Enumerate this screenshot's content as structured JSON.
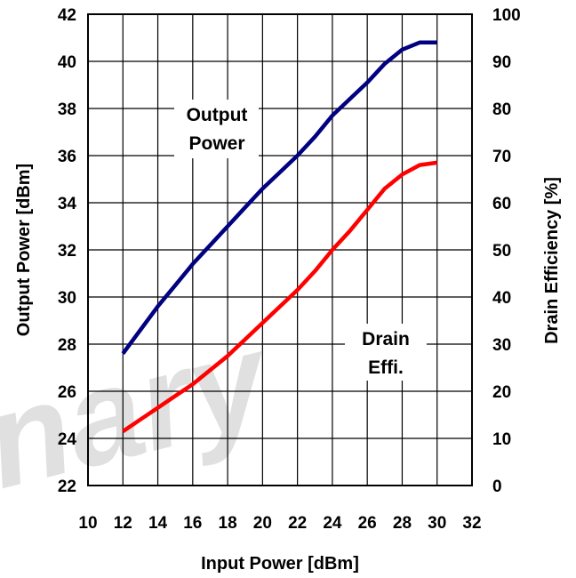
{
  "chart_data": {
    "type": "line",
    "xlabel": "Input Power [dBm]",
    "ylabel_left": "Output Power [dBm]",
    "ylabel_right": "Drain Efficiency [%]",
    "xlim": [
      10,
      32
    ],
    "ylim_left": [
      22,
      42
    ],
    "ylim_right": [
      0,
      100
    ],
    "x_ticks": [
      10,
      12,
      14,
      16,
      18,
      20,
      22,
      24,
      26,
      28,
      30,
      32
    ],
    "y_left_ticks": [
      22,
      24,
      26,
      28,
      30,
      32,
      34,
      36,
      38,
      40,
      42
    ],
    "y_right_ticks": [
      0,
      10,
      20,
      30,
      40,
      50,
      60,
      70,
      80,
      90,
      100
    ],
    "grid": true,
    "series": [
      {
        "name": "Output Power",
        "axis": "left",
        "color": "#000080",
        "x": [
          12,
          13,
          14,
          15,
          16,
          17,
          18,
          19,
          20,
          21,
          22,
          23,
          24,
          25,
          26,
          27,
          28,
          29,
          30
        ],
        "y": [
          27.6,
          28.6,
          29.6,
          30.5,
          31.4,
          32.2,
          33.0,
          33.8,
          34.6,
          35.3,
          36.0,
          36.8,
          37.7,
          38.4,
          39.1,
          39.9,
          40.5,
          40.8,
          40.8
        ]
      },
      {
        "name": "Drain Effi.",
        "axis": "right",
        "color": "#ff0000",
        "x": [
          12,
          13,
          14,
          15,
          16,
          17,
          18,
          19,
          20,
          21,
          22,
          23,
          24,
          25,
          26,
          27,
          28,
          29,
          30
        ],
        "y": [
          11.5,
          14,
          16.5,
          19,
          21.5,
          24.5,
          27.5,
          31,
          34.5,
          38,
          41.5,
          45.5,
          50,
          54,
          58.5,
          63,
          66,
          68,
          68.5
        ]
      }
    ],
    "annotations": [
      {
        "lines": [
          "Output",
          "Power"
        ],
        "series": "Output Power"
      },
      {
        "lines": [
          "Drain",
          "Effi."
        ],
        "series": "Drain Effi."
      }
    ]
  },
  "watermark_text": "inary"
}
